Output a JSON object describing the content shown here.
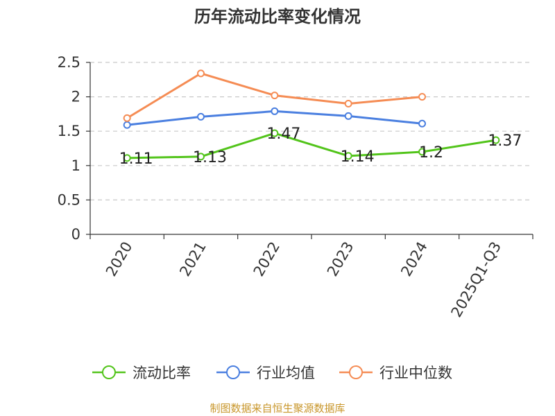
{
  "chart_data": {
    "type": "line",
    "title": "历年流动比率变化情况",
    "categories": [
      "2020",
      "2021",
      "2022",
      "2023",
      "2024",
      "2025Q1-Q3"
    ],
    "ylim": [
      0,
      2.5
    ],
    "yticks": [
      "0",
      "0.5",
      "1",
      "1.5",
      "2",
      "2.5"
    ],
    "grid": true,
    "legend_position": "bottom",
    "series": [
      {
        "name": "流动比率",
        "color": "#52c41a",
        "values": [
          1.11,
          1.13,
          1.47,
          1.14,
          1.2,
          1.37
        ],
        "labels": [
          "1.11",
          "1.13",
          "1.47",
          "1.14",
          "1.2",
          "1.37"
        ]
      },
      {
        "name": "行业均值",
        "color": "#4a7fe0",
        "values": [
          1.59,
          1.71,
          1.79,
          1.72,
          1.61,
          null
        ]
      },
      {
        "name": "行业中位数",
        "color": "#f58c54",
        "values": [
          1.69,
          2.34,
          2.02,
          1.9,
          2.0,
          null
        ]
      }
    ]
  },
  "footer": {
    "source": "制图数据来自恒生聚源数据库"
  }
}
